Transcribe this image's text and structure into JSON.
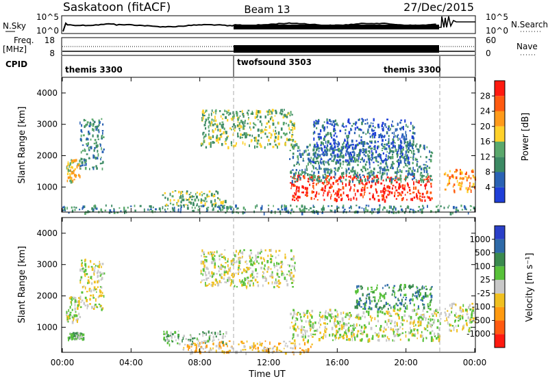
{
  "header": {
    "title": "Saskatoon (fitACF)",
    "beam": "Beam 13",
    "date": "27/Dec/2015"
  },
  "colors": {
    "power_scale": [
      "#1f3fd8",
      "#2a62b4",
      "#3c8a64",
      "#5aa86c",
      "#ffd12a",
      "#ff9a1a",
      "#ff5a10",
      "#ff1a10"
    ],
    "velocity_scale": [
      "#2a3fc8",
      "#2e6aa8",
      "#3a8a4e",
      "#58c13a",
      "#c8c8c8",
      "#f0c020",
      "#ff9a10",
      "#ff5a10",
      "#ff1a10"
    ],
    "grey": "#c8c8c8"
  },
  "top_panels": {
    "nsky": {
      "left_label": "N.Sky",
      "left_ticks": [
        "10^5",
        "10^0"
      ],
      "right_ticks": [
        "10^5",
        "10^0"
      ],
      "right_label": "N.Search"
    },
    "freq": {
      "left_label": "Freq.",
      "left_unit": "[MHz]",
      "left_ticks": [
        "18",
        "8"
      ],
      "right_ticks": [
        "60",
        "0"
      ],
      "right_label": "Nave"
    },
    "cpid": {
      "label": "CPID",
      "segments": [
        {
          "name": "themis 3300",
          "start_hour": 0,
          "end_hour": 10
        },
        {
          "name": "twofsound 3503",
          "start_hour": 10,
          "end_hour": 22
        },
        {
          "name": "themis 3300",
          "start_hour": 22,
          "end_hour": 24
        }
      ],
      "segment_names": [
        "themis 3300",
        "twofsound 3503",
        "themis 3300"
      ]
    }
  },
  "chart_data": [
    {
      "type": "heatmap",
      "name": "power",
      "ylabel": "Slant Range [km]",
      "xlim_hours": [
        0,
        24
      ],
      "ylim": [
        200,
        4500
      ],
      "yticks": [
        "1000",
        "2000",
        "3000",
        "4000"
      ],
      "colorbar_label": "Power [dB]",
      "colorbar_ticks": [
        "28",
        "24",
        "20",
        "16",
        "12",
        "8",
        "4"
      ],
      "regions": [
        {
          "t0": 0.2,
          "t1": 1.0,
          "r0": 1200,
          "r1": 1900,
          "level": 4
        },
        {
          "t0": 1.0,
          "t1": 2.4,
          "r0": 1600,
          "r1": 3200,
          "level": 2
        },
        {
          "t0": 5.8,
          "t1": 9.5,
          "r0": 400,
          "r1": 900,
          "level": 3
        },
        {
          "t0": 8.0,
          "t1": 13.5,
          "r0": 2300,
          "r1": 3500,
          "level": 3
        },
        {
          "t0": 13.2,
          "t1": 21.5,
          "r0": 600,
          "r1": 1400,
          "level": 7
        },
        {
          "t0": 13.2,
          "t1": 21.5,
          "r0": 1200,
          "r1": 2400,
          "level": 2
        },
        {
          "t0": 14.5,
          "t1": 20.5,
          "r0": 1800,
          "r1": 3200,
          "level": 1
        },
        {
          "t0": 22.2,
          "t1": 24.0,
          "r0": 900,
          "r1": 1600,
          "level": 5
        },
        {
          "t0": 0.0,
          "t1": 24.0,
          "r0": 200,
          "r1": 450,
          "level": 2
        }
      ]
    },
    {
      "type": "heatmap",
      "name": "velocity",
      "xlabel": "Time UT",
      "ylabel": "Slant Range [km]",
      "xlim_hours": [
        0,
        24
      ],
      "ylim": [
        200,
        4500
      ],
      "xticks": [
        "00:00",
        "04:00",
        "08:00",
        "12:00",
        "16:00",
        "20:00",
        "00:00"
      ],
      "yticks": [
        "1000",
        "2000",
        "3000",
        "4000"
      ],
      "colorbar_label": "Velocity [m s⁻¹]",
      "colorbar_ticks": [
        "1000",
        "500",
        "100",
        "25",
        "-25",
        "-100",
        "-500",
        "-1000"
      ],
      "regions": [
        {
          "t0": 0.2,
          "t1": 1.0,
          "r0": 1200,
          "r1": 2000,
          "level": 4
        },
        {
          "t0": 1.0,
          "t1": 2.4,
          "r0": 1600,
          "r1": 3200,
          "level": 4
        },
        {
          "t0": 0.3,
          "t1": 1.2,
          "r0": 650,
          "r1": 850,
          "level": 3
        },
        {
          "t0": 5.8,
          "t1": 9.5,
          "r0": 450,
          "r1": 900,
          "level": 3
        },
        {
          "t0": 8.0,
          "t1": 13.5,
          "r0": 2300,
          "r1": 3500,
          "level": 4
        },
        {
          "t0": 7.0,
          "t1": 14.5,
          "r0": 200,
          "r1": 600,
          "level": 5
        },
        {
          "t0": 13.2,
          "t1": 22.0,
          "r0": 600,
          "r1": 1600,
          "level": 4
        },
        {
          "t0": 17.0,
          "t1": 21.5,
          "r0": 1600,
          "r1": 2400,
          "level": 2
        },
        {
          "t0": 22.2,
          "t1": 24.0,
          "r0": 900,
          "r1": 1800,
          "level": 4
        }
      ]
    }
  ]
}
